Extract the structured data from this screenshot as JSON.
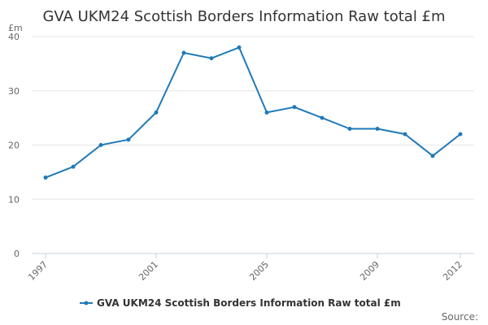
{
  "chart_data": {
    "type": "line",
    "title": "GVA UKM24 Scottish Borders Information Raw total £m",
    "ylabel": "£m",
    "xlabel": "",
    "ylim": [
      0,
      40
    ],
    "yticks": [
      0,
      10,
      20,
      30,
      40
    ],
    "xticks": [
      1997,
      2001,
      2005,
      2009,
      2012
    ],
    "grid": true,
    "legend_position": "bottom",
    "series": [
      {
        "name": "GVA UKM24 Scottish Borders Information Raw total £m",
        "color": "#1f7ab8",
        "x": [
          1997,
          1998,
          1999,
          2000,
          2001,
          2002,
          2003,
          2004,
          2005,
          2006,
          2007,
          2008,
          2009,
          2010,
          2011,
          2012
        ],
        "values": [
          14,
          16,
          20,
          21,
          26,
          37,
          36,
          38,
          26,
          27,
          25,
          23,
          23,
          22,
          18,
          22
        ]
      }
    ]
  },
  "source_label": "Source:"
}
